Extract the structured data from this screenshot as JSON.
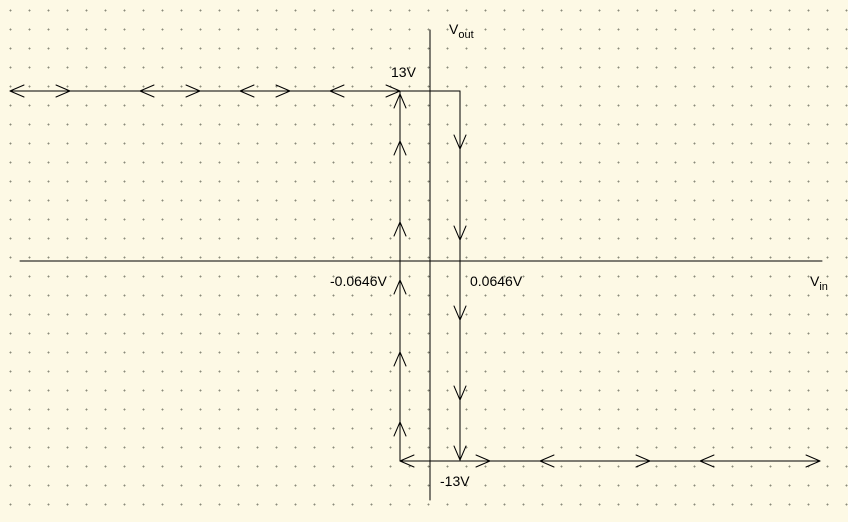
{
  "axes": {
    "y_label_main": "V",
    "y_label_sub": "out",
    "x_label_main": "V",
    "x_label_sub": "in"
  },
  "levels": {
    "high": "13V",
    "low": "-13V"
  },
  "thresholds": {
    "lower": "-0.0646V",
    "upper": "0.0646V"
  }
}
